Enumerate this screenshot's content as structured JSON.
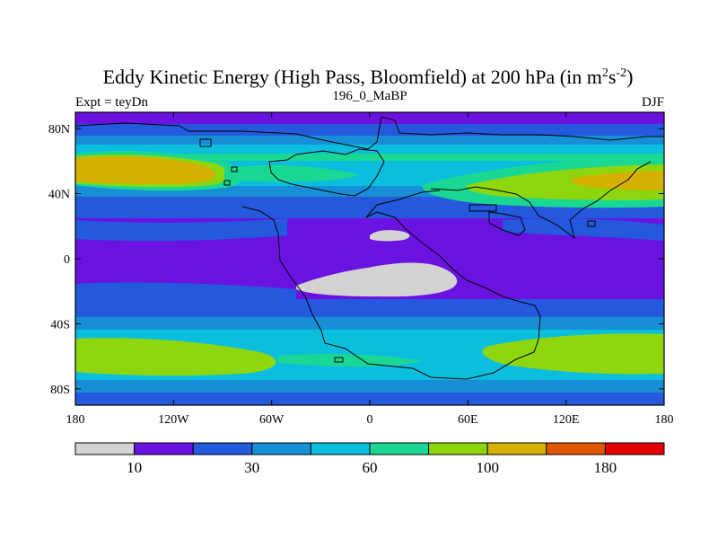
{
  "title": {
    "main": "Eddy Kinetic Energy (High Pass, Bloomfield) at 200 hPa (in m",
    "sup1": "2",
    "mid": "s",
    "sup2": "-2",
    "end": ")"
  },
  "subtitle": {
    "left": "Expt = teyDn",
    "center": "196_0_MaBP",
    "right": "DJF"
  },
  "map": {
    "lat_ticks": [
      {
        "label": "80N",
        "lat": 80
      },
      {
        "label": "40N",
        "lat": 40
      },
      {
        "label": "0",
        "lat": 0
      },
      {
        "label": "40S",
        "lat": -40
      },
      {
        "label": "80S",
        "lat": -80
      }
    ],
    "lon_ticks": [
      {
        "label": "180",
        "lon": -180
      },
      {
        "label": "120W",
        "lon": -120
      },
      {
        "label": "60W",
        "lon": -60
      },
      {
        "label": "0",
        "lon": 0
      },
      {
        "label": "60E",
        "lon": 60
      },
      {
        "label": "120E",
        "lon": 120
      },
      {
        "label": "180",
        "lon": 180
      }
    ],
    "lat_range": [
      -90,
      90
    ],
    "lon_range": [
      -180,
      180
    ]
  },
  "colorbar": {
    "colors": [
      "#d3d3d3",
      "#6a12e0",
      "#2459dd",
      "#168fd6",
      "#0cbedd",
      "#1ad893",
      "#8ed70f",
      "#d5b100",
      "#e05500",
      "#e30000"
    ],
    "labels": [
      {
        "text": "10",
        "boundary": 1
      },
      {
        "text": "30",
        "boundary": 3
      },
      {
        "text": "60",
        "boundary": 5
      },
      {
        "text": "100",
        "boundary": 7
      },
      {
        "text": "180",
        "boundary": 9
      }
    ]
  }
}
